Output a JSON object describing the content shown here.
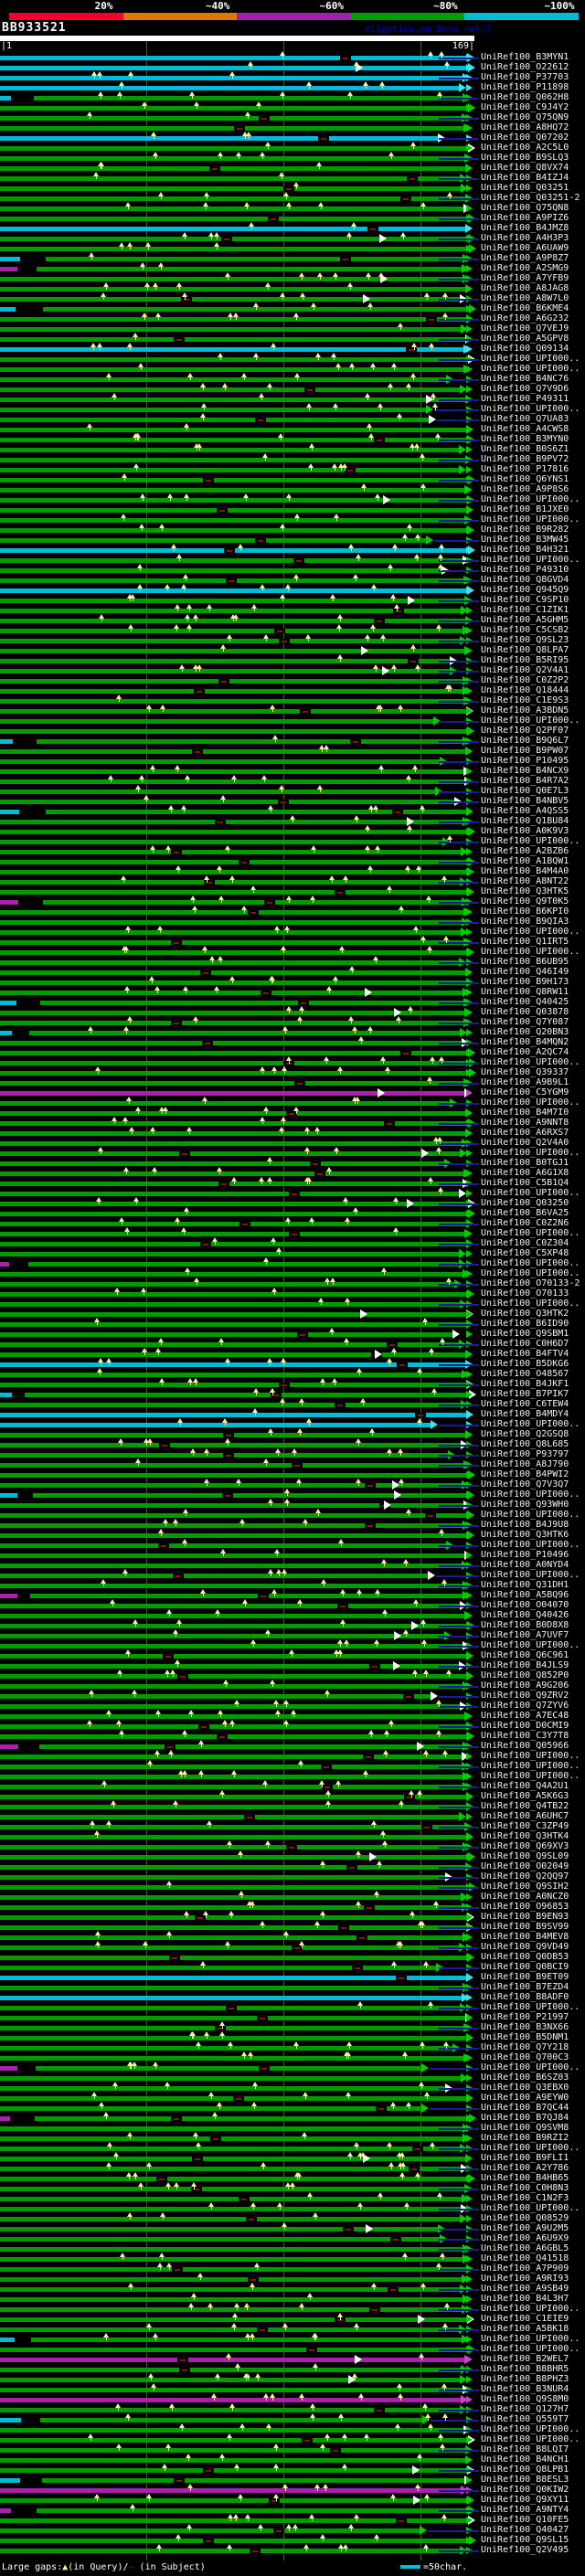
{
  "app": {
    "watermark": "AlignView.pm Beta rel.7"
  },
  "scale": {
    "labels": [
      "20%",
      "~40%",
      "~60%",
      "~80%",
      "~100%"
    ],
    "colors": [
      "#f2002e",
      "#e07800",
      "#a020b0",
      "#00a000",
      "#00bcd4"
    ]
  },
  "query": {
    "name": "BB933521",
    "ruler_start": "|1",
    "ruler_end": "169|"
  },
  "legend": {
    "large_gaps": "Large gaps:",
    "query_marker": "▲",
    "query_text": "(in Query)/",
    "subject_marker": "—",
    "subject_text": " (in Subject)",
    "scale_text": "=50char."
  },
  "colors": {
    "bar_green": "#009c00",
    "arrow_green": "#00cc00",
    "bar_cyan": "#00bcd4",
    "arrow_cyan": "#40e0e8",
    "bar_magenta": "#aa22aa",
    "arrow_magenta": "#c846c8",
    "marker_yellow": "#f5f0a0",
    "connector_navy": "#1c1c96",
    "gap_maroon": "#801616",
    "grid_olive": "#55552a",
    "query_bar_white": "#ffffff",
    "watermark_navy": "#000099",
    "label_text": "#f2f2f2"
  },
  "rows_format": [
    "label",
    "color(g=green,c=cyan,m=magenta)"
  ],
  "rows": [
    [
      "UniRef100_B3MYN1",
      "c"
    ],
    [
      "UniRef100_O22612",
      "c"
    ],
    [
      "UniRef100_P37703",
      "c"
    ],
    [
      "UniRef100_P11898",
      "c"
    ],
    [
      "UniRef100_Q062H8",
      "g"
    ],
    [
      "UniRef100_C9J4Y2",
      "g"
    ],
    [
      "UniRef100_Q75QN9",
      "g"
    ],
    [
      "UniRef100_A8HQ72",
      "g"
    ],
    [
      "UniRef100_Q07202",
      "c"
    ],
    [
      "UniRef100_A2C5L0",
      "g"
    ],
    [
      "UniRef100_B9SLQ3",
      "g"
    ],
    [
      "UniRef100_Q8VX74",
      "g"
    ],
    [
      "UniRef100_B4IZJ4",
      "g"
    ],
    [
      "UniRef100_Q03251",
      "g"
    ],
    [
      "UniRef100_Q03251-2",
      "g"
    ],
    [
      "UniRef100_Q75QN8",
      "g"
    ],
    [
      "UniRef100_A9PIZ6",
      "g"
    ],
    [
      "UniRef100_B4JMZ8",
      "c"
    ],
    [
      "UniRef100_A4H3P3",
      "g"
    ],
    [
      "UniRef100_A6UAW9",
      "g"
    ],
    [
      "UniRef100_A9P8Z7",
      "g"
    ],
    [
      "UniRef100_A2SMG9",
      "g"
    ],
    [
      "UniRef100_A7YFB9",
      "g"
    ],
    [
      "UniRef100_A8JAG8",
      "g"
    ],
    [
      "UniRef100_A8W7L0",
      "g"
    ],
    [
      "UniRef100_B6KME4",
      "g"
    ],
    [
      "UniRef100_A6G232",
      "g"
    ],
    [
      "UniRef100_Q7VEJ9",
      "g"
    ],
    [
      "UniRef100_A5GPV8",
      "g"
    ],
    [
      "UniRef100_Q09134",
      "c"
    ],
    [
      "UniRef100_UPI000..",
      "g"
    ],
    [
      "UniRef100_UPI000..",
      "g"
    ],
    [
      "UniRef100_B4NC76",
      "g"
    ],
    [
      "UniRef100_Q7V9D6",
      "g"
    ],
    [
      "UniRef100_P49311",
      "g"
    ],
    [
      "UniRef100_UPI000..",
      "g"
    ],
    [
      "UniRef100_Q7UA83",
      "g"
    ],
    [
      "UniRef100_A4CWS8",
      "g"
    ],
    [
      "UniRef100_B3MYN0",
      "g"
    ],
    [
      "UniRef100_B0S6Z1",
      "g"
    ],
    [
      "UniRef100_B9PV72",
      "g"
    ],
    [
      "UniRef100_P17816",
      "g"
    ],
    [
      "UniRef100_Q6YNS1",
      "g"
    ],
    [
      "UniRef100_A9P8S6",
      "g"
    ],
    [
      "UniRef100_UPI000..",
      "g"
    ],
    [
      "UniRef100_B1JXE0",
      "g"
    ],
    [
      "UniRef100_UPI000..",
      "g"
    ],
    [
      "UniRef100_B9R282",
      "g"
    ],
    [
      "UniRef100_B3MW45",
      "g"
    ],
    [
      "UniRef100_B4H321",
      "c"
    ],
    [
      "UniRef100_UPI000..",
      "g"
    ],
    [
      "UniRef100_P49310",
      "g"
    ],
    [
      "UniRef100_Q8GVD4",
      "g"
    ],
    [
      "UniRef100_Q945Q9",
      "c"
    ],
    [
      "UniRef100_C9SP10",
      "g"
    ],
    [
      "UniRef100_C1ZIK1",
      "g"
    ],
    [
      "UniRef100_A5GHM5",
      "g"
    ],
    [
      "UniRef100_C5CSB2",
      "g"
    ],
    [
      "UniRef100_Q9SL23",
      "g"
    ],
    [
      "UniRef100_Q8LPA7",
      "g"
    ],
    [
      "UniRef100_B5RI95",
      "g"
    ],
    [
      "UniRef100_Q2V4A1",
      "g"
    ],
    [
      "UniRef100_C0Z2P2",
      "g"
    ],
    [
      "UniRef100_Q18444",
      "g"
    ],
    [
      "UniRef100_C1E9S3",
      "g"
    ],
    [
      "UniRef100_A3BDN5",
      "g"
    ],
    [
      "UniRef100_UPI000..",
      "g"
    ],
    [
      "UniRef100_Q2PF07",
      "g"
    ],
    [
      "UniRef100_B9Q6L7",
      "g"
    ],
    [
      "UniRef100_B9PW07",
      "g"
    ],
    [
      "UniRef100_P10495",
      "g"
    ],
    [
      "UniRef100_B4NCX9",
      "g"
    ],
    [
      "UniRef100_B4R7A2",
      "g"
    ],
    [
      "UniRef100_Q0E7L3",
      "g"
    ],
    [
      "UniRef100_B4NBV5",
      "g"
    ],
    [
      "UniRef100_A4QSS5",
      "g"
    ],
    [
      "UniRef100_Q1BU84",
      "g"
    ],
    [
      "UniRef100_A0K9V3",
      "g"
    ],
    [
      "UniRef100_UPI000..",
      "g"
    ],
    [
      "UniRef100_A2BZB6",
      "g"
    ],
    [
      "UniRef100_A1BQW1",
      "g"
    ],
    [
      "UniRef100_B4M4A0",
      "g"
    ],
    [
      "UniRef100_A8NT22",
      "g"
    ],
    [
      "UniRef100_Q3HTK5",
      "g"
    ],
    [
      "UniRef100_Q9T0K5",
      "g"
    ],
    [
      "UniRef100_B6KPI0",
      "g"
    ],
    [
      "UniRef100_B9QIA3",
      "g"
    ],
    [
      "UniRef100_UPI000..",
      "g"
    ],
    [
      "UniRef100_Q1IRT5",
      "g"
    ],
    [
      "UniRef100_UPI000..",
      "g"
    ],
    [
      "UniRef100_B6UB95",
      "g"
    ],
    [
      "UniRef100_Q46I49",
      "g"
    ],
    [
      "UniRef100_B9H173",
      "g"
    ],
    [
      "UniRef100_Q8RW11",
      "g"
    ],
    [
      "UniRef100_Q40425",
      "g"
    ],
    [
      "UniRef100_Q03878",
      "g"
    ],
    [
      "UniRef100_Q7Y087",
      "g"
    ],
    [
      "UniRef100_Q20BN3",
      "g"
    ],
    [
      "UniRef100_B4MQN2",
      "g"
    ],
    [
      "UniRef100_A2QC74",
      "g"
    ],
    [
      "UniRef100_UPI000..",
      "g"
    ],
    [
      "UniRef100_Q39337",
      "g"
    ],
    [
      "UniRef100_A9B9L1",
      "g"
    ],
    [
      "UniRef100_C5YGM9",
      "m"
    ],
    [
      "UniRef100_UPI000..",
      "g"
    ],
    [
      "UniRef100_B4M7I0",
      "g"
    ],
    [
      "UniRef100_A9NNT8",
      "g"
    ],
    [
      "UniRef100_A6RXS7",
      "g"
    ],
    [
      "UniRef100_Q2V4A0",
      "g"
    ],
    [
      "UniRef100_UPI000..",
      "g"
    ],
    [
      "UniRef100_B0TGJ1",
      "g"
    ],
    [
      "UniRef100_A6G1X8",
      "g"
    ],
    [
      "UniRef100_C5B1Q4",
      "g"
    ],
    [
      "UniRef100_UPI000..",
      "g"
    ],
    [
      "UniRef100_Q03250",
      "g"
    ],
    [
      "UniRef100_B6VA25",
      "g"
    ],
    [
      "UniRef100_C0Z2N6",
      "g"
    ],
    [
      "UniRef100_UPI000..",
      "g"
    ],
    [
      "UniRef100_C0Z304",
      "g"
    ],
    [
      "UniRef100_C5XP48",
      "g"
    ],
    [
      "UniRef100_UPI000..",
      "g"
    ],
    [
      "UniRef100_UPI000..",
      "g"
    ],
    [
      "UniRef100_O70133-2",
      "g"
    ],
    [
      "UniRef100_O70133",
      "g"
    ],
    [
      "UniRef100_UPI000..",
      "g"
    ],
    [
      "UniRef100_Q3HTK2",
      "g"
    ],
    [
      "UniRef100_B6ID90",
      "g"
    ],
    [
      "UniRef100_Q9SBM1",
      "g"
    ],
    [
      "UniRef100_C0H6D7",
      "g"
    ],
    [
      "UniRef100_B4FTV4",
      "g"
    ],
    [
      "UniRef100_B5DKG6",
      "c"
    ],
    [
      "UniRef100_O48567",
      "g"
    ],
    [
      "UniRef100_B4JKF1",
      "g"
    ],
    [
      "UniRef100_B7PIK7",
      "g"
    ],
    [
      "UniRef100_C6TEW4",
      "g"
    ],
    [
      "UniRef100_B4MDY4",
      "c"
    ],
    [
      "UniRef100_UPI000..",
      "c"
    ],
    [
      "UniRef100_Q2GSQ8",
      "g"
    ],
    [
      "UniRef100_Q8L685",
      "g"
    ],
    [
      "UniRef100_P93797",
      "g"
    ],
    [
      "UniRef100_A8J790",
      "g"
    ],
    [
      "UniRef100_B4PWI2",
      "g"
    ],
    [
      "UniRef100_Q7V3Q7",
      "g"
    ],
    [
      "UniRef100_UPI000..",
      "g"
    ],
    [
      "UniRef100_Q93WH0",
      "g"
    ],
    [
      "UniRef100_UPI000..",
      "g"
    ],
    [
      "UniRef100_B4J9U8",
      "g"
    ],
    [
      "UniRef100_Q3HTK6",
      "g"
    ],
    [
      "UniRef100_UPI000..",
      "g"
    ],
    [
      "UniRef100_P10496",
      "g"
    ],
    [
      "UniRef100_A0NYD4",
      "g"
    ],
    [
      "UniRef100_UPI000..",
      "g"
    ],
    [
      "UniRef100_Q31DH1",
      "g"
    ],
    [
      "UniRef100_A5BQ96",
      "g"
    ],
    [
      "UniRef100_O04070",
      "g"
    ],
    [
      "UniRef100_Q40426",
      "g"
    ],
    [
      "UniRef100_B0D8X8",
      "g"
    ],
    [
      "UniRef100_A7UVF7",
      "g"
    ],
    [
      "UniRef100_UPI000..",
      "g"
    ],
    [
      "UniRef100_Q6C961",
      "g"
    ],
    [
      "UniRef100_B4JLS9",
      "g"
    ],
    [
      "UniRef100_Q852P0",
      "g"
    ],
    [
      "UniRef100_A9G206",
      "g"
    ],
    [
      "UniRef100_Q9ZRV2",
      "g"
    ],
    [
      "UniRef100_Q7ZYV6",
      "g"
    ],
    [
      "UniRef100_A7EC48",
      "g"
    ],
    [
      "UniRef100_D0CMI9",
      "g"
    ],
    [
      "UniRef100_C3Y7T8",
      "g"
    ],
    [
      "UniRef100_Q05966",
      "g"
    ],
    [
      "UniRef100_UPI000..",
      "g"
    ],
    [
      "UniRef100_UPI000..",
      "g"
    ],
    [
      "UniRef100_UPI000..",
      "g"
    ],
    [
      "UniRef100_Q4A2U1",
      "g"
    ],
    [
      "UniRef100_A5K6G3",
      "g"
    ],
    [
      "UniRef100_Q4TB22",
      "g"
    ],
    [
      "UniRef100_A6UHC7",
      "g"
    ],
    [
      "UniRef100_C3ZP49",
      "g"
    ],
    [
      "UniRef100_Q3HTK4",
      "g"
    ],
    [
      "UniRef100_Q69XV3",
      "g"
    ],
    [
      "UniRef100_Q9SL09",
      "g"
    ],
    [
      "UniRef100_O02049",
      "g"
    ],
    [
      "UniRef100_Q2QQ97",
      "g"
    ],
    [
      "UniRef100_Q9SIH2",
      "g"
    ],
    [
      "UniRef100_A0NCZ0",
      "g"
    ],
    [
      "UniRef100_O96853",
      "g"
    ],
    [
      "UniRef100_B9EN93",
      "g"
    ],
    [
      "UniRef100_B9SV99",
      "g"
    ],
    [
      "UniRef100_B4MEV8",
      "g"
    ],
    [
      "UniRef100_Q9VD49",
      "g"
    ],
    [
      "UniRef100_Q0DB53",
      "g"
    ],
    [
      "UniRef100_Q0BCI9",
      "g"
    ],
    [
      "UniRef100_B9ET09",
      "c"
    ],
    [
      "UniRef100_B7EZD4",
      "g"
    ],
    [
      "UniRef100_B8ADF0",
      "c"
    ],
    [
      "UniRef100_UPI000..",
      "g"
    ],
    [
      "UniRef100_P21997",
      "g"
    ],
    [
      "UniRef100_B3NX66",
      "g"
    ],
    [
      "UniRef100_B5DNM1",
      "g"
    ],
    [
      "UniRef100_Q7Y218",
      "g"
    ],
    [
      "UniRef100_Q700C3",
      "g"
    ],
    [
      "UniRef100_UPI000..",
      "g"
    ],
    [
      "UniRef100_B6SZ03",
      "g"
    ],
    [
      "UniRef100_Q3EBX0",
      "g"
    ],
    [
      "UniRef100_A9EYW0",
      "g"
    ],
    [
      "UniRef100_B7QC44",
      "g"
    ],
    [
      "UniRef100_B7QJ84",
      "g"
    ],
    [
      "UniRef100_Q9SVM8",
      "g"
    ],
    [
      "UniRef100_B9RZI2",
      "g"
    ],
    [
      "UniRef100_UPI000..",
      "g"
    ],
    [
      "UniRef100_B9FLI1",
      "g"
    ],
    [
      "UniRef100_A2Y786",
      "g"
    ],
    [
      "UniRef100_B4HB65",
      "g"
    ],
    [
      "UniRef100_C0H8N3",
      "g"
    ],
    [
      "UniRef100_C1N2F3",
      "g"
    ],
    [
      "UniRef100_UPI000..",
      "g"
    ],
    [
      "UniRef100_Q08529",
      "g"
    ],
    [
      "UniRef100_A9U2M5",
      "g"
    ],
    [
      "UniRef100_A6U9X9",
      "g"
    ],
    [
      "UniRef100_A6GBL5",
      "g"
    ],
    [
      "UniRef100_Q41518",
      "g"
    ],
    [
      "UniRef100_A7P909",
      "g"
    ],
    [
      "UniRef100_A9RI93",
      "g"
    ],
    [
      "UniRef100_A9SB49",
      "g"
    ],
    [
      "UniRef100_B4L3H7",
      "g"
    ],
    [
      "UniRef100_UPI000..",
      "g"
    ],
    [
      "UniRef100_C1EIE9",
      "g"
    ],
    [
      "UniRef100_A5BK18",
      "g"
    ],
    [
      "UniRef100_UPI000..",
      "g"
    ],
    [
      "UniRef100_UPI000..",
      "g"
    ],
    [
      "UniRef100_B2WEL7",
      "m"
    ],
    [
      "UniRef100_B8BHR5",
      "g"
    ],
    [
      "UniRef100_B8PHZ3",
      "g"
    ],
    [
      "UniRef100_B3NUR4",
      "g"
    ],
    [
      "UniRef100_Q9S8M0",
      "m"
    ],
    [
      "UniRef100_Q127H7",
      "g"
    ],
    [
      "UniRef100_Q559T7",
      "g"
    ],
    [
      "UniRef100_UPI000..",
      "g"
    ],
    [
      "UniRef100_UPI000..",
      "g"
    ],
    [
      "UniRef100_B8LQI7",
      "g"
    ],
    [
      "UniRef100_B4NCH1",
      "g"
    ],
    [
      "UniRef100_Q8LPB1",
      "g"
    ],
    [
      "UniRef100_B8ESL3",
      "g"
    ],
    [
      "UniRef100_Q0KIW2",
      "m"
    ],
    [
      "UniRef100_Q9XY11",
      "g"
    ],
    [
      "UniRef100_A9NTY4",
      "g"
    ],
    [
      "UniRef100_Q10FE5",
      "g"
    ],
    [
      "UniRef100_Q40427",
      "g"
    ],
    [
      "UniRef100_Q9SL15",
      "g"
    ],
    [
      "UniRef100_Q2V495",
      "g"
    ]
  ]
}
